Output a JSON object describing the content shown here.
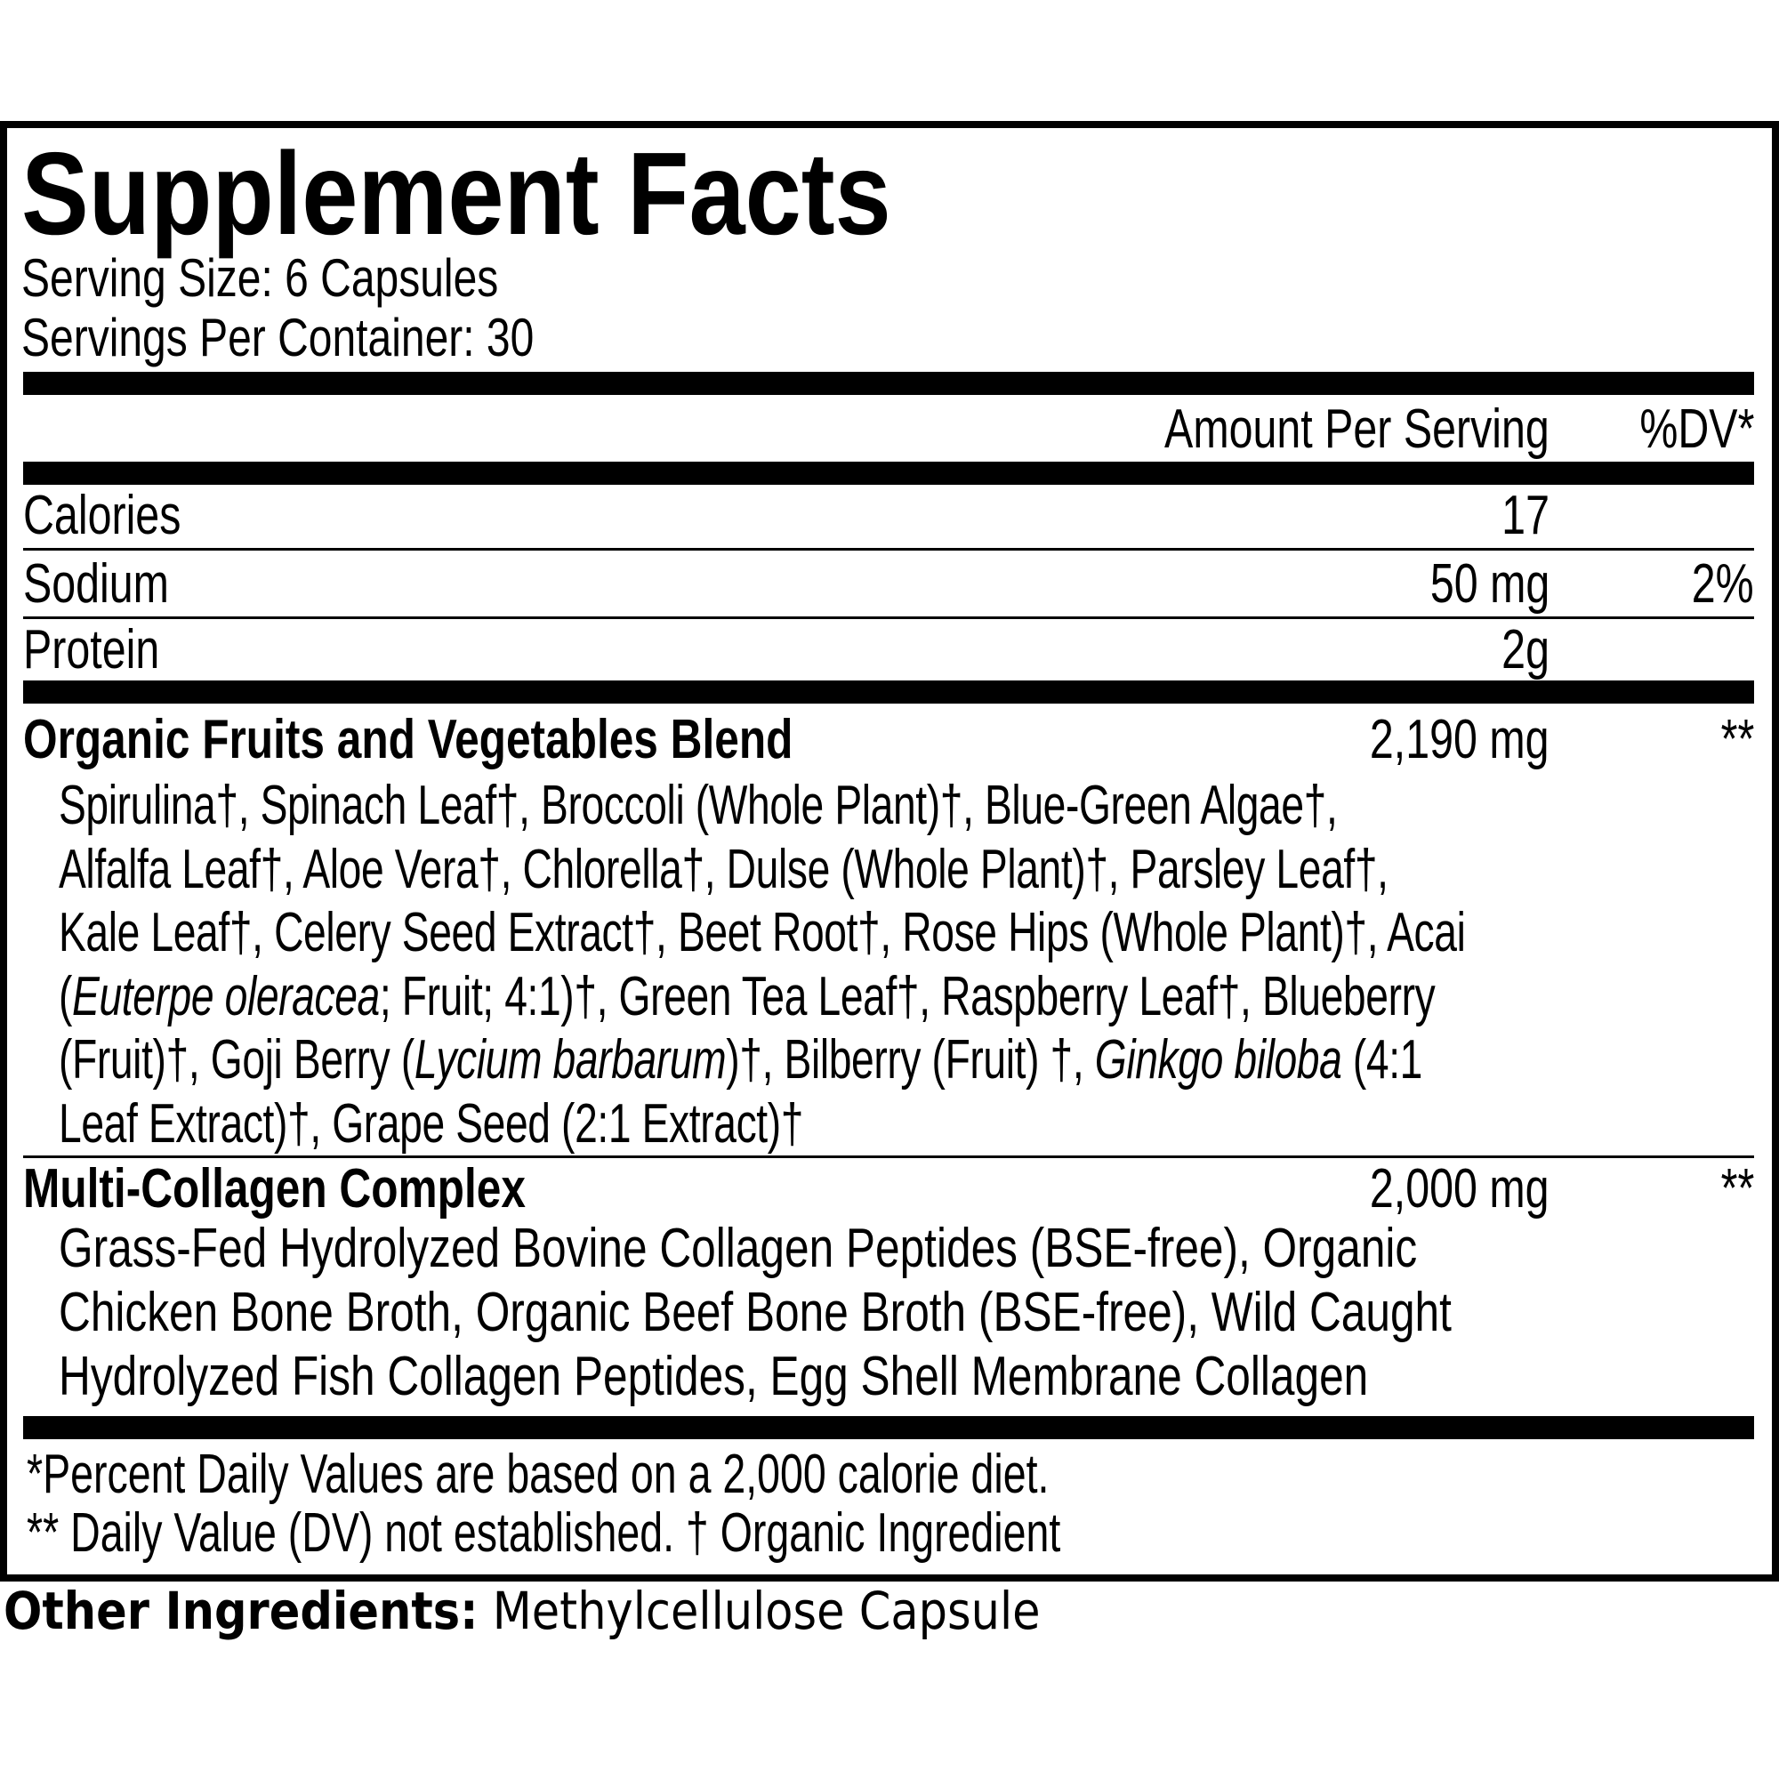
{
  "title": "Supplement Facts",
  "serving_size": "Serving Size: 6 Capsules",
  "servings_per_container": "Servings Per Container: 30",
  "header": {
    "amount": "Amount Per Serving",
    "dv": "%DV*"
  },
  "nutrients": [
    {
      "name": "Calories",
      "amount": "17",
      "dv": ""
    },
    {
      "name": "Sodium",
      "amount": "50 mg",
      "dv": "2%"
    },
    {
      "name": "Protein",
      "amount": "2g",
      "dv": ""
    }
  ],
  "blend": {
    "name": "Organic Fruits and Vegetables Blend",
    "amount": "2,190 mg",
    "dv": "**",
    "lines": [
      [
        {
          "text": "Spirulina†, Spinach Leaf†, Broccoli (Whole Plant)†, Blue-Green Algae†,"
        }
      ],
      [
        {
          "text": "Alfalfa Leaf†, Aloe Vera†, Chlorella†, Dulse (Whole Plant)†, Parsley Leaf†,"
        }
      ],
      [
        {
          "text": "Kale Leaf†, Celery Seed Extract†, Beet Root†, Rose Hips (Whole Plant)†, Acai"
        }
      ],
      [
        {
          "text": "("
        },
        {
          "text": "Euterpe oleracea",
          "italic": true
        },
        {
          "text": "; Fruit; 4:1)†, Green Tea Leaf†, Raspberry Leaf†, Blueberry"
        }
      ],
      [
        {
          "text": "(Fruit)†, Goji Berry ("
        },
        {
          "text": "Lycium barbarum",
          "italic": true
        },
        {
          "text": ")†, Bilberry (Fruit) †, "
        },
        {
          "text": "Ginkgo biloba",
          "italic": true
        },
        {
          "text": " (4:1"
        }
      ],
      [
        {
          "text": "Leaf Extract)†, Grape Seed (2:1 Extract)†"
        }
      ]
    ]
  },
  "collagen": {
    "name": "Multi-Collagen Complex",
    "amount": "2,000 mg",
    "dv": "**",
    "lines": [
      "Grass-Fed Hydrolyzed Bovine Collagen Peptides (BSE-free), Organic",
      "Chicken Bone Broth, Organic Beef Bone Broth (BSE-free), Wild Caught",
      "Hydrolyzed Fish Collagen Peptides, Egg Shell Membrane Collagen"
    ]
  },
  "footnotes": [
    "*Percent Daily Values are based on a 2,000 calorie diet.",
    "** Daily Value (DV) not established. † Organic Ingredient"
  ],
  "other_ingredients": {
    "label": "Other Ingredients:",
    "value": " Methylcellulose Capsule"
  }
}
